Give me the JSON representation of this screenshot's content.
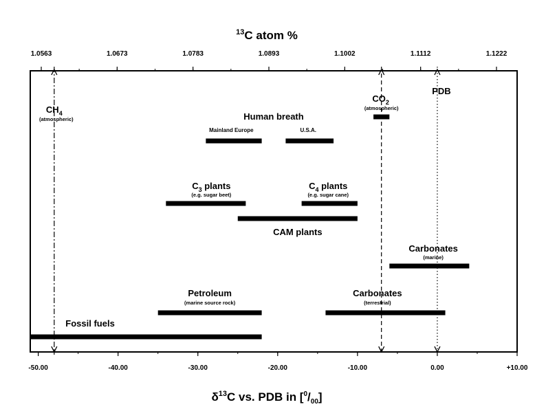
{
  "chart_data": {
    "type": "range-bar",
    "top_axis": {
      "title_sup": "13",
      "title_main": "C atom %",
      "ticks": [
        "1.0563",
        "1.0673",
        "1.0783",
        "1.0893",
        "1.1002",
        "1.1112",
        "1.1222"
      ]
    },
    "bottom_axis": {
      "title_pre": "δ",
      "title_sup": "13",
      "title_mid": "C vs. PDB in [",
      "title_unit_sup": "0",
      "title_unit_sep": "/",
      "title_unit_sub": "00",
      "title_end": "]",
      "xlim": [
        -51,
        10
      ],
      "ticks": [
        {
          "value": -50,
          "label": "-50.00"
        },
        {
          "value": -40,
          "label": "-40.00"
        },
        {
          "value": -30,
          "label": "-30.00"
        },
        {
          "value": -20,
          "label": "-20.00"
        },
        {
          "value": -10,
          "label": "-10.00"
        },
        {
          "value": 0,
          "label": "0.00"
        },
        {
          "value": 10,
          "label": "+10.00"
        }
      ]
    },
    "reference_lines": [
      {
        "value": -48,
        "label": "CH",
        "label_sub": "4",
        "sublabel": "(atmospheric)",
        "style": "dash-dot"
      },
      {
        "value": -7,
        "label": "CO",
        "label_sub": "2",
        "sublabel": "(atmospheric)",
        "style": "dashed"
      },
      {
        "value": 0,
        "label": "PDB",
        "label_sub": "",
        "sublabel": "",
        "style": "dotted"
      }
    ],
    "group_labels": [
      {
        "text": "Human breath"
      }
    ],
    "ranges": [
      {
        "name": "Mainland Europe",
        "sub_lbl": "",
        "min": -29,
        "max": -22,
        "label_x": -26.5,
        "row": 1
      },
      {
        "name": "U.S.A.",
        "sub_lbl": "",
        "min": -19,
        "max": -13,
        "label_x": -16,
        "row": 1
      },
      {
        "name": "C3",
        "sub_lbl": "3",
        "name_suffix": " plants",
        "sublabel": "(e.g. sugar beet)",
        "min": -34,
        "max": -24,
        "label_x": -29,
        "row": 2
      },
      {
        "name": "C4",
        "sub_lbl": "4",
        "name_suffix": " plants",
        "sublabel": "(e.g. sugar cane)",
        "min": -17,
        "max": -10,
        "label_x": -13.5,
        "row": 2
      },
      {
        "name": "CAM plants",
        "min": -25,
        "max": -10,
        "row": 3
      },
      {
        "name": "Carbonates",
        "sublabel": "(marine)",
        "min": -6,
        "max": 4,
        "row": 4
      },
      {
        "name": "Petroleum",
        "sublabel": "(marine source rock)",
        "min": -35,
        "max": -22,
        "row": 5
      },
      {
        "name": "Carbonates",
        "sublabel": "(terrestrial)",
        "min": -14,
        "max": 1,
        "row": 5
      },
      {
        "name": "Fossil fuels",
        "min": -51,
        "max": -22,
        "row": 6
      },
      {
        "name": "CO2 (atmospheric)",
        "min": -8,
        "max": -6,
        "row": 0
      }
    ],
    "grid": false
  }
}
